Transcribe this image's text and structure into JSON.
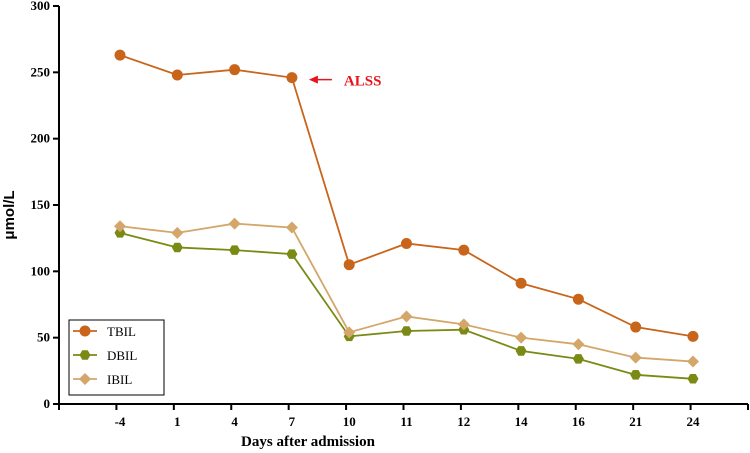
{
  "chart_data": {
    "type": "line",
    "title": "",
    "xlabel": "Days after admission",
    "ylabel": "μmol/L",
    "categories": [
      "-4",
      "1",
      "4",
      "7",
      "10",
      "11",
      "12",
      "14",
      "16",
      "21",
      "24"
    ],
    "ylim": [
      0,
      300
    ],
    "yticks": [
      "0",
      "50",
      "100",
      "150",
      "200",
      "250",
      "300"
    ],
    "grid": false,
    "legend_position": "bottom-left",
    "series": [
      {
        "name": "TBIL",
        "marker": "circle",
        "color": "#c8651b",
        "values": [
          263,
          248,
          252,
          246,
          105,
          121,
          116,
          91,
          79,
          58,
          51
        ]
      },
      {
        "name": "DBIL",
        "marker": "hexagon",
        "color": "#7a8a14",
        "values": [
          129,
          118,
          116,
          113,
          51,
          55,
          56,
          40,
          34,
          22,
          19
        ]
      },
      {
        "name": "IBIL",
        "marker": "diamond",
        "color": "#d4a66a",
        "values": [
          134,
          129,
          136,
          133,
          54,
          66,
          60,
          50,
          45,
          35,
          32
        ]
      }
    ],
    "annotations": [
      {
        "text": "ALSS",
        "color": "#e8141b",
        "x_category": "7",
        "y": 246
      }
    ]
  }
}
